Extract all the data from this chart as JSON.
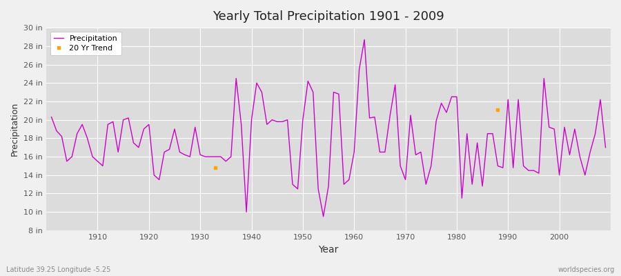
{
  "title": "Yearly Total Precipitation 1901 - 2009",
  "xlabel": "Year",
  "ylabel": "Precipitation",
  "subtitle": "Latitude 39.25 Longitude -5.25",
  "watermark": "worldspecies.org",
  "background_color": "#f0f0f0",
  "plot_bg_color": "#dcdcdc",
  "line_color": "#cc00cc",
  "trend_color": "#ffa500",
  "ylim": [
    8,
    30
  ],
  "yticks": [
    8,
    10,
    12,
    14,
    16,
    18,
    20,
    22,
    24,
    26,
    28,
    30
  ],
  "years": [
    1901,
    1902,
    1903,
    1904,
    1905,
    1906,
    1907,
    1908,
    1909,
    1910,
    1911,
    1912,
    1913,
    1914,
    1915,
    1916,
    1917,
    1918,
    1919,
    1920,
    1921,
    1922,
    1923,
    1924,
    1925,
    1926,
    1927,
    1928,
    1929,
    1930,
    1931,
    1932,
    1933,
    1934,
    1935,
    1936,
    1937,
    1938,
    1939,
    1940,
    1941,
    1942,
    1943,
    1944,
    1945,
    1946,
    1947,
    1948,
    1949,
    1950,
    1951,
    1952,
    1953,
    1954,
    1955,
    1956,
    1957,
    1958,
    1959,
    1960,
    1961,
    1962,
    1963,
    1964,
    1965,
    1966,
    1967,
    1968,
    1969,
    1970,
    1971,
    1972,
    1973,
    1974,
    1975,
    1976,
    1977,
    1978,
    1979,
    1980,
    1981,
    1982,
    1983,
    1984,
    1985,
    1986,
    1987,
    1988,
    1989,
    1990,
    1991,
    1992,
    1993,
    1994,
    1995,
    1996,
    1997,
    1998,
    1999,
    2000,
    2001,
    2002,
    2003,
    2004,
    2005,
    2006,
    2007,
    2008,
    2009
  ],
  "precip": [
    20.3,
    18.8,
    18.2,
    15.5,
    16.0,
    18.5,
    19.5,
    18.0,
    16.0,
    15.5,
    15.0,
    19.5,
    19.8,
    16.5,
    20.0,
    20.2,
    17.5,
    17.0,
    19.0,
    19.5,
    14.0,
    13.5,
    16.5,
    16.8,
    19.0,
    16.5,
    16.2,
    16.0,
    19.2,
    16.2,
    16.0,
    16.0,
    16.0,
    16.0,
    15.5,
    16.0,
    24.5,
    19.5,
    10.0,
    20.0,
    24.0,
    23.0,
    19.5,
    20.0,
    19.8,
    19.8,
    20.0,
    13.0,
    12.5,
    20.0,
    24.2,
    23.0,
    12.5,
    9.5,
    12.8,
    23.0,
    22.8,
    13.0,
    13.5,
    16.5,
    25.5,
    28.7,
    20.2,
    20.3,
    16.5,
    16.5,
    20.5,
    23.8,
    15.0,
    13.5,
    20.5,
    16.2,
    16.5,
    13.0,
    15.0,
    19.9,
    21.8,
    20.8,
    22.5,
    22.5,
    11.5,
    18.5,
    13.0,
    17.5,
    12.8,
    18.5,
    18.5,
    15.0,
    14.8,
    22.2,
    14.8,
    22.2,
    15.0,
    14.5,
    14.5,
    14.2,
    24.5,
    19.2,
    19.0,
    14.0,
    19.2,
    16.2,
    19.0,
    16.0,
    14.0,
    16.5,
    18.5,
    22.2,
    17.0
  ],
  "trend_dot_1_year": 1933,
  "trend_dot_1_value": 14.8,
  "trend_dot_2_year": 1988,
  "trend_dot_2_value": 21.1,
  "xlim": [
    1900,
    2010
  ]
}
